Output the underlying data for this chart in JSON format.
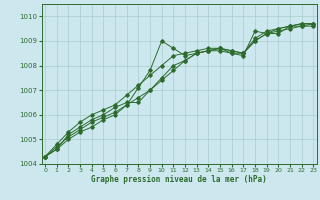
{
  "xlabel": "Graphe pression niveau de la mer (hPa)",
  "background_color": "#cce8ee",
  "grid_color": "#aacccc",
  "line_color": "#2d6b2d",
  "ylim": [
    1004,
    1010.5
  ],
  "xlim": [
    -0.3,
    23.3
  ],
  "yticks": [
    1004,
    1005,
    1006,
    1007,
    1008,
    1009,
    1010
  ],
  "xticks": [
    0,
    1,
    2,
    3,
    4,
    5,
    6,
    7,
    8,
    9,
    10,
    11,
    12,
    13,
    14,
    15,
    16,
    17,
    18,
    19,
    20,
    21,
    22,
    23
  ],
  "series": [
    [
      1004.3,
      1004.6,
      1005.0,
      1005.3,
      1005.5,
      1005.8,
      1006.0,
      1006.4,
      1007.1,
      1007.8,
      1009.0,
      1008.7,
      1008.4,
      1008.5,
      1008.6,
      1008.6,
      1008.5,
      1008.4,
      1009.4,
      1009.3,
      1009.3,
      1009.6,
      1009.6,
      1009.6
    ],
    [
      1004.3,
      1004.6,
      1005.2,
      1005.5,
      1005.8,
      1006.0,
      1006.3,
      1006.5,
      1006.5,
      1007.0,
      1007.5,
      1008.0,
      1008.2,
      1008.5,
      1008.6,
      1008.7,
      1008.6,
      1008.5,
      1009.0,
      1009.3,
      1009.5,
      1009.6,
      1009.7,
      1009.7
    ],
    [
      1004.3,
      1004.8,
      1005.3,
      1005.7,
      1006.0,
      1006.2,
      1006.4,
      1006.8,
      1007.2,
      1007.6,
      1008.0,
      1008.4,
      1008.5,
      1008.6,
      1008.7,
      1008.7,
      1008.5,
      1008.5,
      1009.1,
      1009.4,
      1009.5,
      1009.6,
      1009.7,
      1009.7
    ],
    [
      1004.3,
      1004.7,
      1005.1,
      1005.4,
      1005.7,
      1005.9,
      1006.1,
      1006.4,
      1006.7,
      1007.0,
      1007.4,
      1007.8,
      1008.2,
      1008.5,
      1008.6,
      1008.7,
      1008.6,
      1008.5,
      1009.0,
      1009.3,
      1009.4,
      1009.5,
      1009.6,
      1009.7
    ]
  ]
}
